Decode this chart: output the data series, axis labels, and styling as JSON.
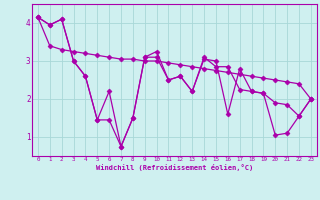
{
  "xlabel": "Windchill (Refroidissement éolien,°C)",
  "xlim": [
    -0.5,
    23.5
  ],
  "ylim": [
    0.5,
    4.5
  ],
  "yticks": [
    1,
    2,
    3,
    4
  ],
  "xticks": [
    0,
    1,
    2,
    3,
    4,
    5,
    6,
    7,
    8,
    9,
    10,
    11,
    12,
    13,
    14,
    15,
    16,
    17,
    18,
    19,
    20,
    21,
    22,
    23
  ],
  "background_color": "#cff0f0",
  "grid_color": "#a8d8d8",
  "line_color": "#aa00aa",
  "spine_color": "#aa00aa",
  "tick_color": "#aa00aa",
  "label_color": "#aa00aa",
  "marker": "D",
  "markersize": 2.5,
  "linewidth": 0.9,
  "series": [
    [
      4.15,
      3.4,
      3.3,
      3.25,
      3.2,
      3.15,
      3.1,
      3.05,
      3.05,
      3.0,
      3.0,
      2.95,
      2.9,
      2.85,
      2.8,
      2.75,
      2.7,
      2.65,
      2.6,
      2.55,
      2.5,
      2.45,
      2.4,
      2.0
    ],
    [
      4.15,
      3.95,
      4.1,
      3.0,
      2.6,
      1.45,
      1.45,
      0.75,
      1.5,
      3.1,
      3.1,
      2.5,
      2.6,
      2.2,
      3.05,
      3.0,
      1.6,
      2.8,
      2.2,
      2.15,
      1.05,
      1.1,
      1.55,
      2.0
    ],
    [
      4.15,
      3.95,
      4.1,
      3.0,
      2.6,
      1.45,
      2.2,
      0.75,
      1.5,
      3.1,
      3.25,
      2.5,
      2.6,
      2.2,
      3.1,
      2.85,
      2.85,
      2.25,
      2.2,
      2.15,
      1.9,
      1.85,
      1.55,
      2.0
    ]
  ]
}
